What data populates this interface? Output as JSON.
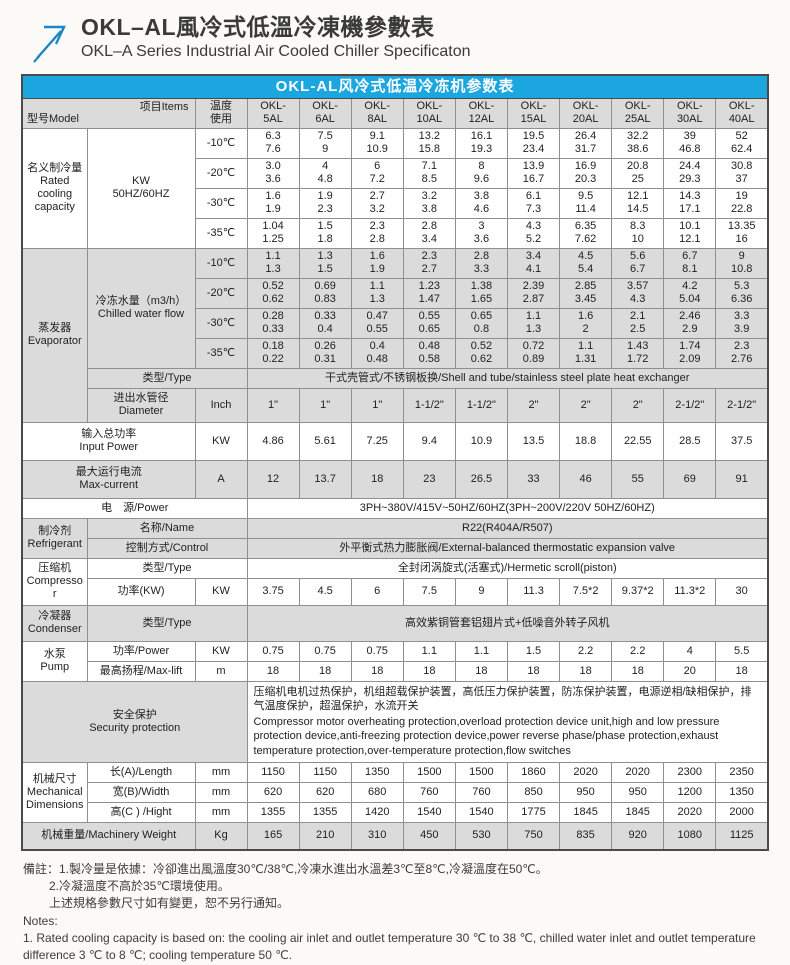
{
  "colors": {
    "accent_blue": "#1ca6e0",
    "logo_blue": "#1a86c8",
    "cell_gray": "#dbdbdb",
    "border": "#8f8f8f"
  },
  "header": {
    "title_zh": "OKL–AL風冷式低溫冷凍機參數表",
    "title_en": "OKL–A Series Industrial Air Cooled Chiller Specificaton"
  },
  "table": {
    "title": "OKL-AL风冷式低温冷冻机参数表",
    "corner": {
      "model": "型号Model",
      "items": "项目Items"
    },
    "temp_header": {
      "l1": "温度",
      "l2": "使用"
    },
    "model_headers": [
      [
        "OKL-",
        "5AL"
      ],
      [
        "OKL-",
        "6AL"
      ],
      [
        "OKL-",
        "8AL"
      ],
      [
        "OKL-",
        "10AL"
      ],
      [
        "OKL-",
        "12AL"
      ],
      [
        "OKL-",
        "15AL"
      ],
      [
        "OKL-",
        "20AL"
      ],
      [
        "OKL-",
        "25AL"
      ],
      [
        "OKL-",
        "30AL"
      ],
      [
        "OKL-",
        "40AL"
      ]
    ]
  },
  "sections": {
    "rated": {
      "zh": "名义制冷量",
      "en": "Rated cooling capacity",
      "unit1": "KW",
      "unit2": "50HZ/60HZ",
      "rows": [
        {
          "temp": "-10℃",
          "values": [
            [
              "6.3",
              "7.6"
            ],
            [
              "7.5",
              "9"
            ],
            [
              "9.1",
              "10.9"
            ],
            [
              "13.2",
              "15.8"
            ],
            [
              "16.1",
              "19.3"
            ],
            [
              "19.5",
              "23.4"
            ],
            [
              "26.4",
              "31.7"
            ],
            [
              "32.2",
              "38.6"
            ],
            [
              "39",
              "46.8"
            ],
            [
              "52",
              "62.4"
            ]
          ]
        },
        {
          "temp": "-20℃",
          "values": [
            [
              "3.0",
              "3.6"
            ],
            [
              "4",
              "4.8"
            ],
            [
              "6",
              "7.2"
            ],
            [
              "7.1",
              "8.5"
            ],
            [
              "8",
              "9.6"
            ],
            [
              "13.9",
              "16.7"
            ],
            [
              "16.9",
              "20.3"
            ],
            [
              "20.8",
              "25"
            ],
            [
              "24.4",
              "29.3"
            ],
            [
              "30.8",
              "37"
            ]
          ]
        },
        {
          "temp": "-30℃",
          "values": [
            [
              "1.6",
              "1.9"
            ],
            [
              "1.9",
              "2.3"
            ],
            [
              "2.7",
              "3.2"
            ],
            [
              "3.2",
              "3.8"
            ],
            [
              "3.8",
              "4.6"
            ],
            [
              "6.1",
              "7.3"
            ],
            [
              "9.5",
              "11.4"
            ],
            [
              "12.1",
              "14.5"
            ],
            [
              "14.3",
              "17.1"
            ],
            [
              "19",
              "22.8"
            ]
          ]
        },
        {
          "temp": "-35℃",
          "values": [
            [
              "1.04",
              "1.25"
            ],
            [
              "1.5",
              "1.8"
            ],
            [
              "2.3",
              "2.8"
            ],
            [
              "2.8",
              "3.4"
            ],
            [
              "3",
              "3.6"
            ],
            [
              "4.3",
              "5.2"
            ],
            [
              "6.35",
              "7.62"
            ],
            [
              "8.3",
              "10"
            ],
            [
              "10.1",
              "12.1"
            ],
            [
              "13.35",
              "16"
            ]
          ]
        }
      ]
    },
    "evaporator": {
      "zh": "蒸发器",
      "en": "Evaporator",
      "flow_zh": "冷冻水量（m3/h）",
      "flow_en": "Chilled water flow",
      "rows": [
        {
          "temp": "-10℃",
          "values": [
            [
              "1.1",
              "1.3"
            ],
            [
              "1.3",
              "1.5"
            ],
            [
              "1.6",
              "1.9"
            ],
            [
              "2.3",
              "2.7"
            ],
            [
              "2.8",
              "3.3"
            ],
            [
              "3.4",
              "4.1"
            ],
            [
              "4.5",
              "5.4"
            ],
            [
              "5.6",
              "6.7"
            ],
            [
              "6.7",
              "8.1"
            ],
            [
              "9",
              "10.8"
            ]
          ]
        },
        {
          "temp": "-20℃",
          "values": [
            [
              "0.52",
              "0.62"
            ],
            [
              "0.69",
              "0.83"
            ],
            [
              "1.1",
              "1.3"
            ],
            [
              "1.23",
              "1.47"
            ],
            [
              "1.38",
              "1.65"
            ],
            [
              "2.39",
              "2.87"
            ],
            [
              "2.85",
              "3.45"
            ],
            [
              "3.57",
              "4.3"
            ],
            [
              "4.2",
              "5.04"
            ],
            [
              "5.3",
              "6.36"
            ]
          ]
        },
        {
          "temp": "-30℃",
          "values": [
            [
              "0.28",
              "0.33"
            ],
            [
              "0.33",
              "0.4"
            ],
            [
              "0.47",
              "0.55"
            ],
            [
              "0.55",
              "0.65"
            ],
            [
              "0.65",
              "0.8"
            ],
            [
              "1.1",
              "1.3"
            ],
            [
              "1.6",
              "2"
            ],
            [
              "2.1",
              "2.5"
            ],
            [
              "2.46",
              "2.9"
            ],
            [
              "3.3",
              "3.9"
            ]
          ]
        },
        {
          "temp": "-35℃",
          "values": [
            [
              "0.18",
              "0.22"
            ],
            [
              "0.26",
              "0.31"
            ],
            [
              "0.4",
              "0.48"
            ],
            [
              "0.48",
              "0.58"
            ],
            [
              "0.52",
              "0.62"
            ],
            [
              "0.72",
              "0.89"
            ],
            [
              "1.1",
              "1.31"
            ],
            [
              "1.43",
              "1.72"
            ],
            [
              "1.74",
              "2.09"
            ],
            [
              "2.3",
              "2.76"
            ]
          ]
        }
      ],
      "type_label": "类型/Type",
      "type_value": "干式壳管式/不锈钢板换/Shell and tube/stainless steel plate heat exchanger",
      "dia_zh": "进出水管径",
      "dia_en": "Diameter",
      "dia_unit": "Inch",
      "dia_values": [
        "1\"",
        "1\"",
        "1\"",
        "1-1/2\"",
        "1-1/2\"",
        "2\"",
        "2\"",
        "2\"",
        "2-1/2\"",
        "2-1/2\""
      ]
    },
    "input_power": {
      "zh": "输入总功率",
      "en": "Input Power",
      "unit": "KW",
      "values": [
        "4.86",
        "5.61",
        "7.25",
        "9.4",
        "10.9",
        "13.5",
        "18.8",
        "22.55",
        "28.5",
        "37.5"
      ]
    },
    "max_current": {
      "zh": "最大运行电流",
      "en": "Max-current",
      "unit": "A",
      "values": [
        "12",
        "13.7",
        "18",
        "23",
        "26.5",
        "33",
        "46",
        "55",
        "69",
        "91"
      ]
    },
    "power": {
      "label": "电　源/Power",
      "value": "3PH~380V/415V~50HZ/60HZ(3PH~200V/220V  50HZ/60HZ)"
    },
    "refrigerant": {
      "zh": "制冷剂",
      "en": "Refrigerant",
      "name_label": "名称/Name",
      "name_value": "R22(R404A/R507)",
      "control_label": "控制方式/Control",
      "control_value": "外平衡式热力膨胀阀/External-balanced thermostatic expansion valve"
    },
    "compressor": {
      "zh": "压缩机",
      "en": "Compressor",
      "type_label": "类型/Type",
      "type_value": "全封闭涡旋式(活塞式)/Hermetic scroll(piston)",
      "power_label": "功率(KW)",
      "power_unit": "KW",
      "power_values": [
        "3.75",
        "4.5",
        "6",
        "7.5",
        "9",
        "11.3",
        "7.5*2",
        "9.37*2",
        "11.3*2",
        "30"
      ]
    },
    "condenser": {
      "zh": "冷凝器",
      "en": "Condenser",
      "type_label": "类型/Type",
      "type_value": "高效紫铜管套铝翅片式+低噪音外转子风机"
    },
    "pump": {
      "zh": "水泵",
      "en": "Pump",
      "power_label": "功率/Power",
      "power_unit": "KW",
      "power_values": [
        "0.75",
        "0.75",
        "0.75",
        "1.1",
        "1.1",
        "1.5",
        "2.2",
        "2.2",
        "4",
        "5.5"
      ],
      "lift_label": "最高扬程/Max-lift",
      "lift_unit": "m",
      "lift_values": [
        "18",
        "18",
        "18",
        "18",
        "18",
        "18",
        "18",
        "18",
        "20",
        "18"
      ]
    },
    "security": {
      "zh": "安全保护",
      "en": "Security protection",
      "text_zh": "压缩机电机过热保护，机组超载保护装置，高低压力保护装置，防冻保护装置，电源逆相/缺相保护，排气温度保护，超温保护，水流开关",
      "text_en": "Compressor motor overheating protection,overload protection device unit,high and low pressure protection device,anti-freezing protection device,power reverse phase/phase protection,exhaust temperature protection,over-temperature protection,flow switches"
    },
    "dimensions": {
      "zh": "机械尺寸",
      "en": "Mechanical Dimensions",
      "length_label": "长(A)/Length",
      "length_unit": "mm",
      "length_values": [
        "1150",
        "1150",
        "1350",
        "1500",
        "1500",
        "1860",
        "2020",
        "2020",
        "2300",
        "2350"
      ],
      "width_label": "宽(B)/Width",
      "width_unit": "mm",
      "width_values": [
        "620",
        "620",
        "680",
        "760",
        "760",
        "850",
        "950",
        "950",
        "1200",
        "1350"
      ],
      "height_label": "高(C ) /Hight",
      "height_unit": "mm",
      "height_values": [
        "1355",
        "1355",
        "1420",
        "1540",
        "1540",
        "1775",
        "1845",
        "1845",
        "2020",
        "2000"
      ]
    },
    "weight": {
      "label": "机械重量/Machinery Weight",
      "unit": "Kg",
      "values": [
        "165",
        "210",
        "310",
        "450",
        "530",
        "750",
        "835",
        "920",
        "1080",
        "1125"
      ]
    }
  },
  "notes": {
    "zh1": "備註：1.製冷量是依據：冷卻進出風溫度30℃/38℃,冷凍水進出水溫差3℃至8℃,冷凝溫度在50℃。",
    "zh2": "2.冷凝溫度不高於35℃環境使用。",
    "zh3": "上述規格參數尺寸如有變更，恕不另行通知。",
    "en_label": "Notes:",
    "en1": "1. Rated cooling capacity is based on: the cooling air inlet and outlet temperature 30 ℃ to 38 ℃, chilled water inlet and outlet temperature difference 3 ℃ to 8 ℃; cooling temperature 50 ℃."
  }
}
